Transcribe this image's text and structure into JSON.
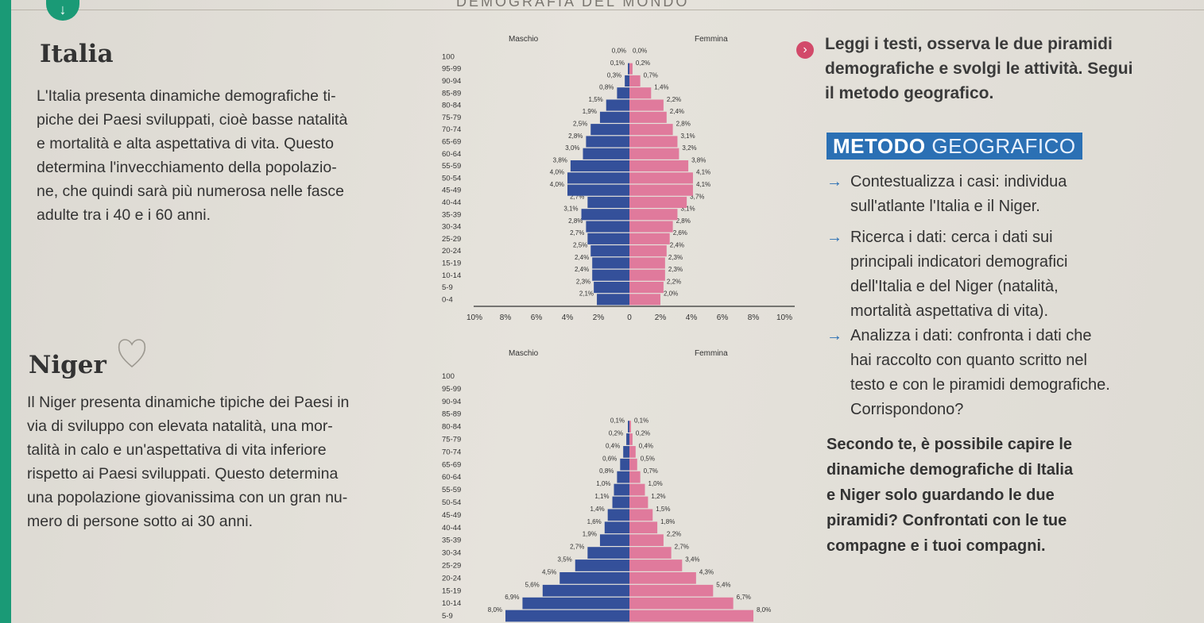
{
  "header": {
    "title": "DEMOGRAFIA DEL MONDO"
  },
  "italia": {
    "title": "Italia",
    "lines": [
      "L'Italia presenta dinamiche demografiche ti-",
      "piche dei Paesi sviluppati, cioè basse natalità",
      "e mortalità e alta aspettativa di vita. Questo",
      "determina l'invecchiamento della popolazio-",
      "ne, che quindi sarà più numerosa nelle fasce",
      "adulte tra i 40 e i 60 anni."
    ]
  },
  "niger": {
    "title": "Niger",
    "lines": [
      "Il Niger presenta dinamiche tipiche dei Paesi in",
      "via di sviluppo con elevata natalità, una mor-",
      "talità in calo e un'aspettativa di vita inferiore",
      "rispetto ai Paesi sviluppati. Questo determina",
      "una popolazione giovanissima con un gran nu-",
      "mero di persone sotto ai 30 anni."
    ]
  },
  "intro": {
    "icon": "arrow-circle-icon",
    "lines": [
      "Leggi i testi, osserva le due piramidi",
      "demografiche e svolgi le attività. Segui",
      "il metodo geografico."
    ]
  },
  "metodo": {
    "word1": "METODO",
    "word2": "GEOGRAFICO"
  },
  "steps": [
    {
      "label": "Contestualizza i casi:",
      "lines": [
        "individua",
        "sull'atlante l'Italia e il Niger."
      ]
    },
    {
      "label": "Ricerca i dati:",
      "lines": [
        "cerca i dati sui",
        "principali indicatori demografici",
        "dell'Italia e del Niger (natalità,",
        "mortalità aspettativa di vita)."
      ]
    },
    {
      "label": "Analizza i dati:",
      "lines": [
        "confronta i dati che",
        "hai raccolto con quanto scritto nel",
        "testo e con le piramidi demografiche.",
        "Corrispondono?"
      ]
    }
  ],
  "question": {
    "lines": [
      "Secondo te, è possibile capire le",
      "dinamiche demografiche di Italia",
      "e Niger solo guardando le due",
      "piramidi? Confrontati con le tue",
      "compagne e i tuoi compagni."
    ]
  },
  "colors": {
    "male": "#34509a",
    "female": "#e07a9c",
    "accent": "#2b70b4",
    "tab": "#1a9a76"
  },
  "chart_data": [
    {
      "type": "bar",
      "orientation": "population-pyramid",
      "country": "Italia",
      "legend_left": "Maschio",
      "legend_right": "Femmina",
      "categories": [
        "0-4",
        "5-9",
        "10-14",
        "15-19",
        "20-24",
        "25-29",
        "30-34",
        "35-39",
        "40-44",
        "45-49",
        "50-54",
        "55-59",
        "60-64",
        "65-69",
        "70-74",
        "75-79",
        "80-84",
        "85-89",
        "90-94",
        "95-99",
        "100"
      ],
      "series": [
        {
          "name": "Maschio",
          "values": [
            2.1,
            2.3,
            2.4,
            2.4,
            2.5,
            2.7,
            2.8,
            3.1,
            2.7,
            4.0,
            4.0,
            3.8,
            3.0,
            2.8,
            2.5,
            1.9,
            1.5,
            0.8,
            0.3,
            0.1,
            0.0
          ]
        },
        {
          "name": "Femmina",
          "values": [
            2.0,
            2.2,
            2.3,
            2.3,
            2.4,
            2.6,
            2.8,
            3.1,
            3.7,
            4.1,
            4.1,
            3.8,
            3.2,
            3.1,
            2.8,
            2.4,
            2.2,
            1.4,
            0.7,
            0.2,
            0.0
          ]
        }
      ],
      "value_labels": {
        "Maschio": [
          "2,1%",
          "2,3%",
          "2,4%",
          "2,4%",
          "2,5%",
          "2,7%",
          "2,8%",
          "3,1%",
          "2,7%",
          "4,0%",
          "4,0%",
          "3,8%",
          "3,0%",
          "2,8%",
          "2,5%",
          "1,9%",
          "1,5%",
          "0,8%",
          "0,3%",
          "0,1%",
          "0,0%"
        ],
        "Femmina": [
          "2,0%",
          "2,2%",
          "2,3%",
          "2,3%",
          "2,4%",
          "2,6%",
          "2,8%",
          "3,1%",
          "3,7%",
          "4,1%",
          "4,1%",
          "3,8%",
          "3,2%",
          "3,1%",
          "2,8%",
          "2,4%",
          "2,2%",
          "1,4%",
          "0,7%",
          "0,2%",
          "0,0%"
        ]
      },
      "xticks": [
        "10%",
        "8%",
        "6%",
        "4%",
        "2%",
        "0",
        "2%",
        "4%",
        "6%",
        "8%",
        "10%"
      ],
      "xlim": [
        -10,
        10
      ]
    },
    {
      "type": "bar",
      "orientation": "population-pyramid",
      "country": "Niger",
      "legend_left": "Maschio",
      "legend_right": "Femmina",
      "categories": [
        "5-9",
        "10-14",
        "15-19",
        "20-24",
        "25-29",
        "30-34",
        "35-39",
        "40-44",
        "45-49",
        "50-54",
        "55-59",
        "60-64",
        "65-69",
        "70-74",
        "75-79",
        "80-84",
        "85-89",
        "90-94",
        "95-99",
        "100"
      ],
      "series": [
        {
          "name": "Maschio",
          "values": [
            8.0,
            6.9,
            5.6,
            4.5,
            3.5,
            2.7,
            1.9,
            1.6,
            1.4,
            1.1,
            1.0,
            0.8,
            0.6,
            0.4,
            0.2,
            0.1,
            0.0,
            0.0,
            0.0,
            0.0
          ]
        },
        {
          "name": "Femmina",
          "values": [
            8.0,
            6.7,
            5.4,
            4.3,
            3.4,
            2.7,
            2.2,
            1.8,
            1.5,
            1.2,
            1.0,
            0.7,
            0.5,
            0.4,
            0.2,
            0.1,
            0.0,
            0.0,
            0.0,
            0.0
          ]
        }
      ],
      "value_labels": {
        "Maschio": [
          "8,0%",
          "6,9%",
          "5,6%",
          "4,5%",
          "3,5%",
          "2,7%",
          "1,9%",
          "1,6%",
          "1,4%",
          "1,1%",
          "1,0%",
          "0,8%",
          "0,6%",
          "0,4%",
          "0,2%",
          "0,1%",
          "",
          "",
          "",
          ""
        ],
        "Femmina": [
          "8,0%",
          "6,7%",
          "5,4%",
          "4,3%",
          "3,4%",
          "2,7%",
          "2,2%",
          "1,8%",
          "1,5%",
          "1,2%",
          "1,0%",
          "0,7%",
          "0,5%",
          "0,4%",
          "0,2%",
          "0,1%",
          "",
          "",
          "",
          ""
        ]
      },
      "xlim": [
        -10,
        10
      ]
    }
  ]
}
